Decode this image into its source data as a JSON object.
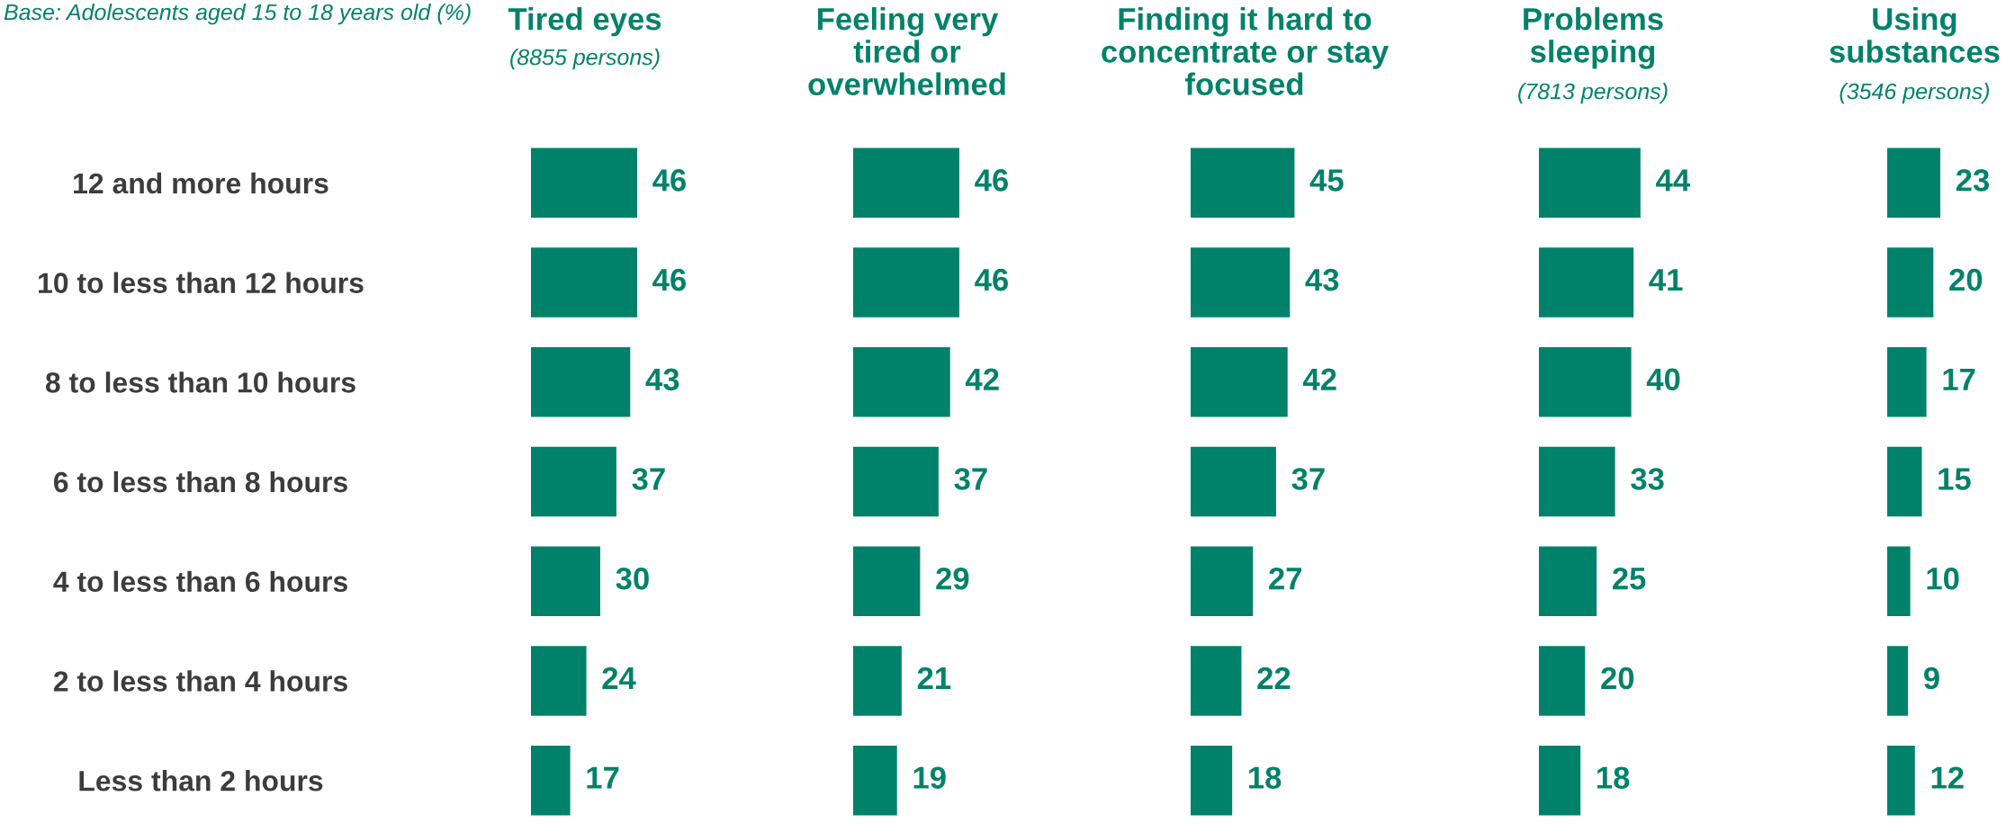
{
  "chart_data": [
    {
      "type": "bar",
      "orientation": "horizontal",
      "title": "Tired eyes",
      "subtitle": "(8855 persons)",
      "annotations": [
        "Base: Adolescents aged 15 to 18 years old (%)"
      ],
      "categories": [
        "12 and more hours",
        "10 to less than 12 hours",
        "8 to less than 10 hours",
        "6 to less than 8 hours",
        "4 to less than 6 hours",
        "2 to less than 4 hours",
        "Less than 2 hours"
      ],
      "values": [
        46,
        46,
        43,
        37,
        30,
        24,
        17
      ],
      "color": "#00826a",
      "data_labels": true,
      "tick_labels": "y"
    },
    {
      "type": "bar",
      "orientation": "horizontal",
      "title": "Feeling very tired or overwhelmed",
      "values": [
        46,
        46,
        42,
        37,
        29,
        21,
        19
      ],
      "color": "#00826a",
      "data_labels": true,
      "tick_labels": false
    },
    {
      "type": "bar",
      "orientation": "horizontal",
      "title": "Finding it hard to concentrate or stay focused",
      "values": [
        45,
        43,
        42,
        37,
        27,
        22,
        18
      ],
      "color": "#00826a",
      "data_labels": true,
      "tick_labels": false
    },
    {
      "type": "bar",
      "orientation": "horizontal",
      "title": "Problems sleeping",
      "subtitle": "(7813 persons)",
      "values": [
        44,
        41,
        40,
        33,
        25,
        20,
        18
      ],
      "color": "#00826a",
      "data_labels": true,
      "tick_labels": false
    },
    {
      "type": "bar",
      "orientation": "horizontal",
      "title": "Using substances",
      "subtitle": "(3546 persons)",
      "values": [
        23,
        20,
        17,
        15,
        10,
        9,
        12
      ],
      "color": "#00826a",
      "data_labels": true,
      "tick_labels": false
    }
  ]
}
